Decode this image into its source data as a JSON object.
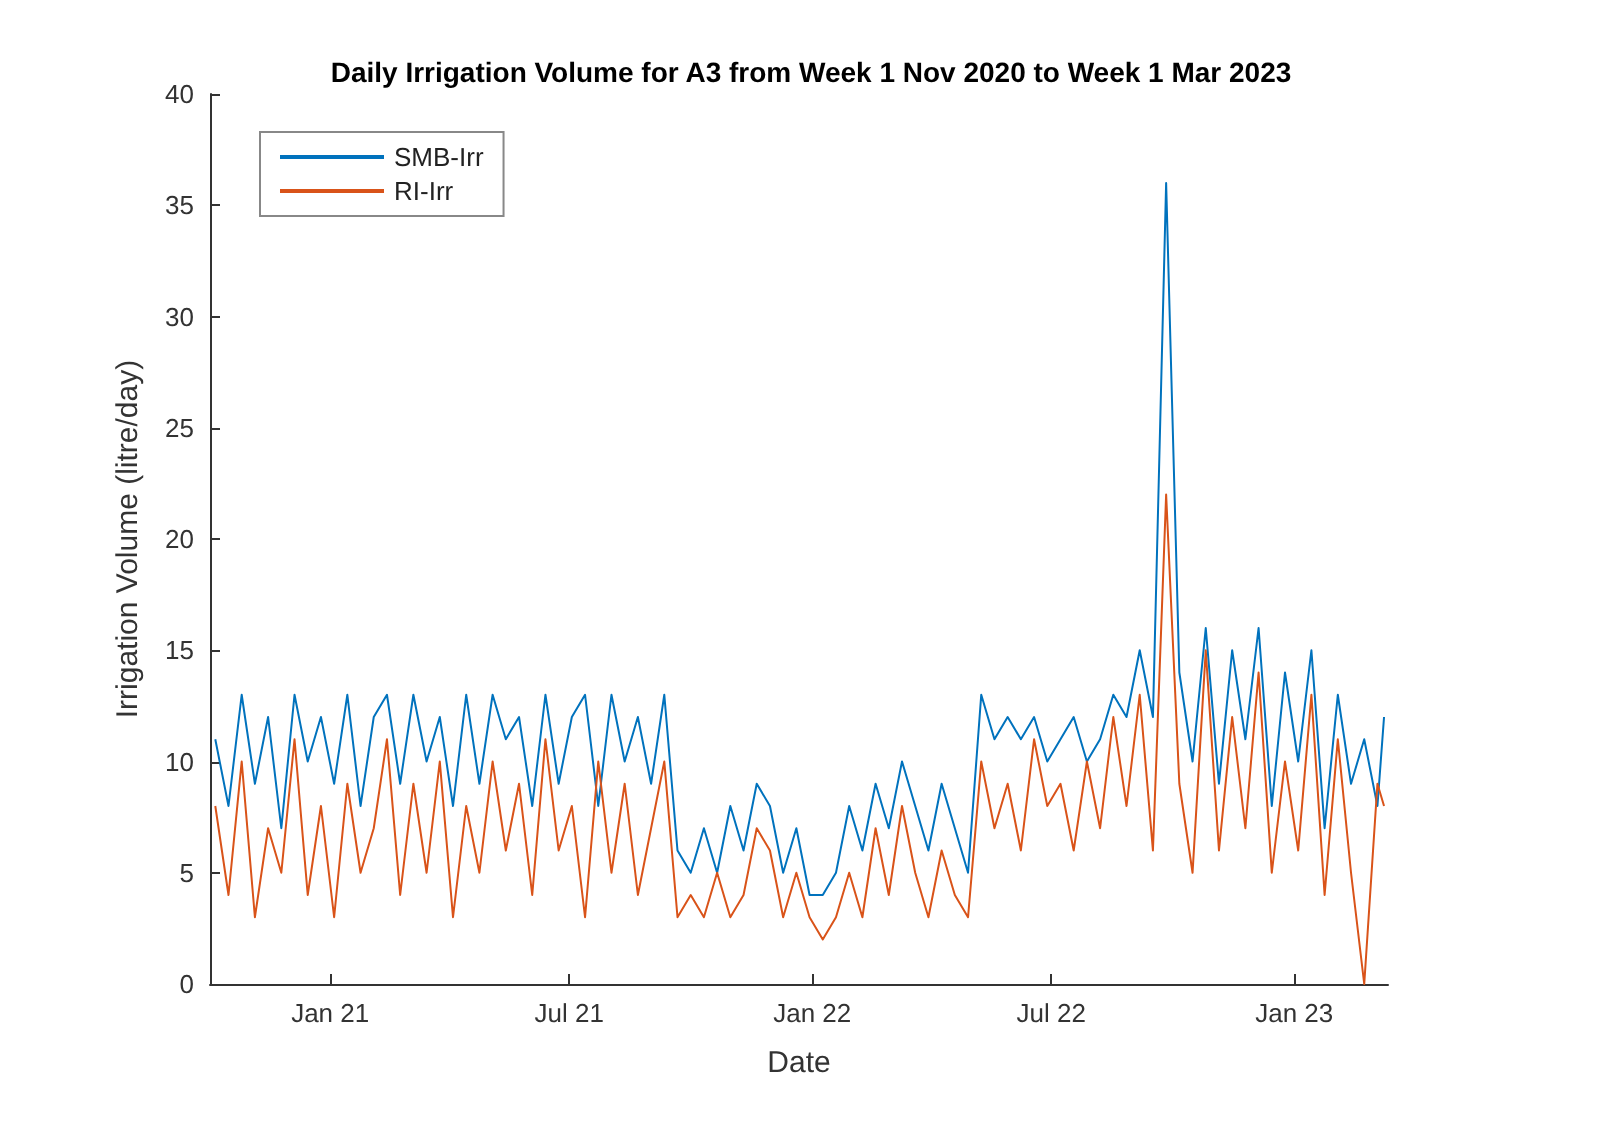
{
  "chart_data": {
    "type": "line",
    "title": "Daily Irrigation Volume for A3 from Week 1 Nov 2020 to Week 1 Mar 2023",
    "xlabel": "Date",
    "ylabel": "Irrigation Volume (litre/day)",
    "x": [
      "2020-10-06",
      "2020-10-16",
      "2020-10-26",
      "2020-11-05",
      "2020-11-15",
      "2020-11-25",
      "2020-12-05",
      "2020-12-15",
      "2020-12-25",
      "2021-01-04",
      "2021-01-14",
      "2021-01-24",
      "2021-02-03",
      "2021-02-13",
      "2021-02-23",
      "2021-03-05",
      "2021-03-15",
      "2021-03-25",
      "2021-04-04",
      "2021-04-14",
      "2021-04-24",
      "2021-05-04",
      "2021-05-14",
      "2021-05-24",
      "2021-06-03",
      "2021-06-13",
      "2021-06-23",
      "2021-07-03",
      "2021-07-13",
      "2021-07-23",
      "2021-08-02",
      "2021-08-12",
      "2021-08-22",
      "2021-09-01",
      "2021-09-11",
      "2021-09-21",
      "2021-10-01",
      "2021-10-11",
      "2021-10-21",
      "2021-10-31",
      "2021-11-10",
      "2021-11-20",
      "2021-11-30",
      "2021-12-10",
      "2021-12-20",
      "2021-12-30",
      "2022-01-09",
      "2022-01-19",
      "2022-01-29",
      "2022-02-08",
      "2022-02-18",
      "2022-02-28",
      "2022-03-10",
      "2022-03-20",
      "2022-03-30",
      "2022-04-09",
      "2022-04-19",
      "2022-04-29",
      "2022-05-09",
      "2022-05-19",
      "2022-05-29",
      "2022-06-08",
      "2022-06-18",
      "2022-06-28",
      "2022-07-08",
      "2022-07-18",
      "2022-07-28",
      "2022-08-07",
      "2022-08-17",
      "2022-08-27",
      "2022-09-06",
      "2022-09-16",
      "2022-09-26",
      "2022-10-06",
      "2022-10-16",
      "2022-10-26",
      "2022-11-05",
      "2022-11-15",
      "2022-11-25",
      "2022-12-05",
      "2022-12-15",
      "2022-12-25",
      "2023-01-04",
      "2023-01-14",
      "2023-01-24",
      "2023-02-03",
      "2023-02-13",
      "2023-02-23",
      "2023-03-05",
      "2023-03-10"
    ],
    "series": [
      {
        "name": "SMB-Irr",
        "color": "#0072bd",
        "values": [
          11,
          8,
          13,
          9,
          12,
          7,
          13,
          10,
          12,
          9,
          13,
          8,
          12,
          13,
          9,
          13,
          10,
          12,
          8,
          13,
          9,
          13,
          11,
          12,
          8,
          13,
          9,
          12,
          13,
          8,
          13,
          10,
          12,
          9,
          13,
          6,
          5,
          7,
          5,
          8,
          6,
          9,
          8,
          5,
          7,
          4,
          4,
          5,
          8,
          6,
          9,
          7,
          10,
          8,
          6,
          9,
          7,
          5,
          13,
          11,
          12,
          11,
          12,
          10,
          11,
          12,
          10,
          11,
          13,
          12,
          15,
          12,
          36,
          14,
          10,
          16,
          9,
          15,
          11,
          16,
          8,
          14,
          10,
          15,
          7,
          13,
          9,
          11,
          8,
          12
        ]
      },
      {
        "name": "RI-Irr",
        "color": "#d95319",
        "values": [
          8,
          4,
          10,
          3,
          7,
          5,
          11,
          4,
          8,
          3,
          9,
          5,
          7,
          11,
          4,
          9,
          5,
          10,
          3,
          8,
          5,
          10,
          6,
          9,
          4,
          11,
          6,
          8,
          3,
          10,
          5,
          9,
          4,
          7,
          10,
          3,
          4,
          3,
          5,
          3,
          4,
          7,
          6,
          3,
          5,
          3,
          2,
          3,
          5,
          3,
          7,
          4,
          8,
          5,
          3,
          6,
          4,
          3,
          10,
          7,
          9,
          6,
          11,
          8,
          9,
          6,
          10,
          7,
          12,
          8,
          13,
          6,
          22,
          9,
          5,
          15,
          6,
          12,
          7,
          14,
          5,
          10,
          6,
          13,
          4,
          11,
          5,
          0,
          9,
          8
        ]
      }
    ],
    "xlim": [
      "2020-10-02",
      "2023-03-13"
    ],
    "xticks": [
      {
        "value": "2021-01-01",
        "label": "Jan 21"
      },
      {
        "value": "2021-07-01",
        "label": "Jul 21"
      },
      {
        "value": "2022-01-01",
        "label": "Jan 22"
      },
      {
        "value": "2022-07-01",
        "label": "Jul 22"
      },
      {
        "value": "2023-01-01",
        "label": "Jan 23"
      }
    ],
    "ylim": [
      0,
      40
    ],
    "yticks": [
      0,
      5,
      10,
      15,
      20,
      25,
      30,
      35,
      40
    ],
    "legend": "top left",
    "marker": "none",
    "line_style": "solid"
  }
}
